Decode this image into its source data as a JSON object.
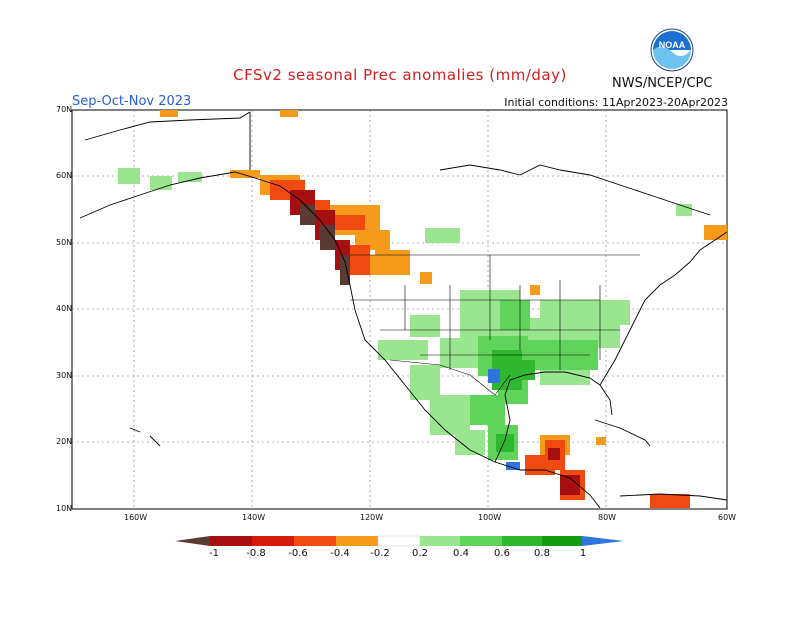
{
  "title": "CFSv2 seasonal Prec anomalies (mm/day)",
  "season": "Sep-Oct-Nov 2023",
  "initial_conditions": "Initial conditions: 11Apr2023-20Apr2023",
  "agency": "NWS/NCEP/CPC",
  "logo_text": "NOAA",
  "map": {
    "lat_labels": [
      "70N",
      "60N",
      "50N",
      "40N",
      "30N",
      "20N",
      "10N"
    ],
    "lon_labels": [
      "160W",
      "140W",
      "120W",
      "100W",
      "80W",
      "60W"
    ]
  },
  "colorbar": {
    "labels": [
      "-1",
      "-0.8",
      "-0.6",
      "-0.4",
      "-0.2",
      "0.2",
      "0.4",
      "0.6",
      "0.8",
      "1"
    ],
    "colors": [
      "#5a3a33",
      "#a50f0f",
      "#d41b0a",
      "#f04a10",
      "#f59a1a",
      "#ffffff",
      "#9ae690",
      "#60d45a",
      "#2fb82f",
      "#129c12",
      "#2f74e0"
    ]
  },
  "colors": {
    "title": "#d21f1f",
    "season": "#2a5ad8",
    "noaa_blue": "#1a6fd1",
    "noaa_light_blue": "#6cc3f0"
  }
}
